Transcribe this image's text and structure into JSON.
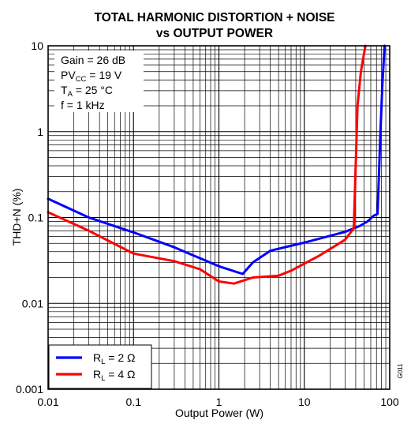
{
  "chart_data": {
    "type": "line",
    "title": "TOTAL HARMONIC DISTORTION + NOISE",
    "subtitle": "vs OUTPUT POWER",
    "xlabel": "Output Power (W)",
    "ylabel": "THD+N (%)",
    "x_scale": "log",
    "y_scale": "log",
    "xlim": [
      0.01,
      100
    ],
    "ylim": [
      0.001,
      10
    ],
    "x_ticks": [
      "0.01",
      "0.1",
      "1",
      "10",
      "100"
    ],
    "y_ticks": [
      "0.001",
      "0.01",
      "0.1",
      "1",
      "10"
    ],
    "grid": true,
    "conditions": [
      {
        "pre": "Gain = 26 dB",
        "sub": "",
        "post": ""
      },
      {
        "pre": "PV",
        "sub": "CC",
        "post": " = 19 V"
      },
      {
        "pre": "T",
        "sub": "A",
        "post": " = 25 °C"
      },
      {
        "pre": "f = 1 kHz",
        "sub": "",
        "post": ""
      }
    ],
    "figure_code": "G011",
    "legend_position": "bottom-left",
    "series": [
      {
        "legend": {
          "pre": "R",
          "sub": "L",
          "post": " = 2 Ω"
        },
        "color": "#0000ff",
        "points": [
          [
            0.01,
            0.165
          ],
          [
            0.03,
            0.1
          ],
          [
            0.1,
            0.067
          ],
          [
            0.3,
            0.045
          ],
          [
            1.0,
            0.027
          ],
          [
            1.9,
            0.022
          ],
          [
            2.5,
            0.03
          ],
          [
            4.0,
            0.041
          ],
          [
            10,
            0.051
          ],
          [
            30,
            0.068
          ],
          [
            45,
            0.08
          ],
          [
            55,
            0.09
          ],
          [
            65,
            0.105
          ],
          [
            72,
            0.11
          ],
          [
            78,
            1.0
          ],
          [
            82,
            3.5
          ],
          [
            87,
            10
          ]
        ]
      },
      {
        "legend": {
          "pre": "R",
          "sub": "L",
          "post": " = 4 Ω"
        },
        "color": "#ff0000",
        "points": [
          [
            0.01,
            0.115
          ],
          [
            0.03,
            0.07
          ],
          [
            0.1,
            0.038
          ],
          [
            0.3,
            0.031
          ],
          [
            0.6,
            0.025
          ],
          [
            1.0,
            0.018
          ],
          [
            1.5,
            0.017
          ],
          [
            2.5,
            0.02
          ],
          [
            5,
            0.021
          ],
          [
            7,
            0.024
          ],
          [
            15,
            0.036
          ],
          [
            30,
            0.055
          ],
          [
            38,
            0.075
          ],
          [
            40,
            0.4
          ],
          [
            42,
            2.0
          ],
          [
            46,
            5.0
          ],
          [
            50,
            8.0
          ],
          [
            52,
            10
          ]
        ]
      }
    ]
  }
}
